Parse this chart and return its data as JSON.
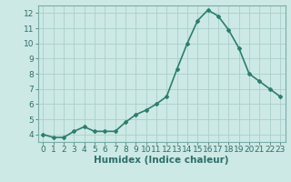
{
  "x": [
    0,
    1,
    2,
    3,
    4,
    5,
    6,
    7,
    8,
    9,
    10,
    11,
    12,
    13,
    14,
    15,
    16,
    17,
    18,
    19,
    20,
    21,
    22,
    23
  ],
  "y": [
    4.0,
    3.8,
    3.8,
    4.2,
    4.5,
    4.2,
    4.2,
    4.2,
    4.8,
    5.3,
    5.6,
    6.0,
    6.5,
    8.3,
    10.0,
    11.5,
    12.2,
    11.8,
    10.9,
    9.7,
    8.0,
    7.5,
    7.0,
    6.5
  ],
  "title": "",
  "xlabel": "Humidex (Indice chaleur)",
  "ylabel": "",
  "xlim": [
    -0.5,
    23.5
  ],
  "ylim": [
    3.5,
    12.5
  ],
  "yticks": [
    4,
    5,
    6,
    7,
    8,
    9,
    10,
    11,
    12
  ],
  "xticks": [
    0,
    1,
    2,
    3,
    4,
    5,
    6,
    7,
    8,
    9,
    10,
    11,
    12,
    13,
    14,
    15,
    16,
    17,
    18,
    19,
    20,
    21,
    22,
    23
  ],
  "line_color": "#2e7d6e",
  "marker": "D",
  "marker_size": 2.0,
  "bg_color": "#cce9e5",
  "grid_color": "#aacfcb",
  "xlabel_fontsize": 7.5,
  "tick_fontsize": 6.5,
  "line_width": 1.2
}
